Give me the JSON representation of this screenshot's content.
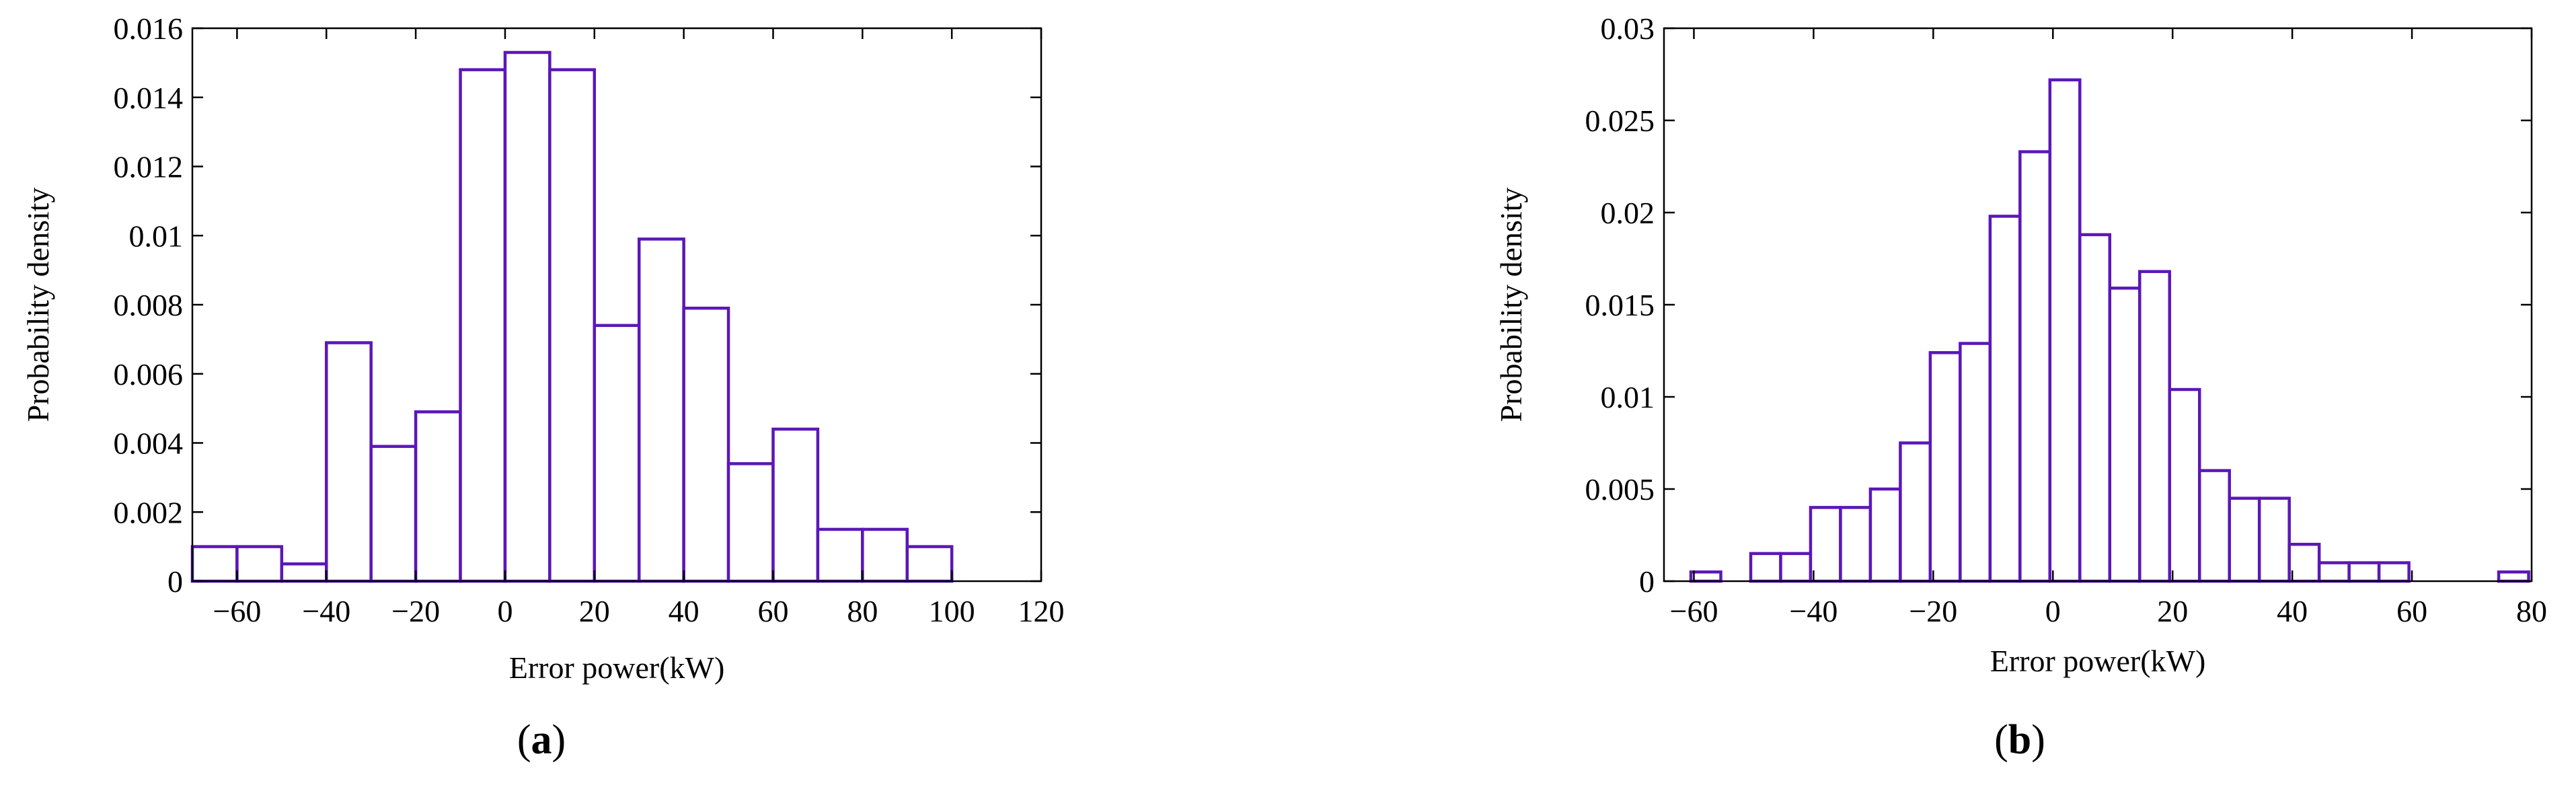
{
  "figure": {
    "panels": [
      {
        "label_open": "(",
        "label_letter": "a",
        "label_close": ")"
      },
      {
        "label_open": "(",
        "label_letter": "b",
        "label_close": ")"
      }
    ]
  },
  "chart_data": [
    {
      "type": "bar",
      "subtype": "histogram",
      "xlabel": "Error power(kW)",
      "ylabel": "Probability density",
      "xlim": [
        -70,
        120
      ],
      "ylim": [
        0,
        0.016
      ],
      "xticks": [
        -60,
        -40,
        -20,
        0,
        20,
        40,
        60,
        80,
        100,
        120
      ],
      "xtick_labels": [
        "−60",
        "−40",
        "−20",
        "0",
        "20",
        "40",
        "60",
        "80",
        "100",
        "120"
      ],
      "yticks": [
        0,
        0.002,
        0.004,
        0.006,
        0.008,
        0.01,
        0.012,
        0.014,
        0.016
      ],
      "ytick_labels": [
        "0",
        "0.002",
        "0.004",
        "0.006",
        "0.008",
        "0.01",
        "0.012",
        "0.014",
        "0.016"
      ],
      "bin_edges": [
        -70,
        -60,
        -50,
        -40,
        -30,
        -20,
        -10,
        0,
        10,
        20,
        30,
        40,
        50,
        60,
        70,
        80,
        90,
        100
      ],
      "values": [
        0.001,
        0.001,
        0.0005,
        0.0069,
        0.0039,
        0.0049,
        0.0148,
        0.0153,
        0.0148,
        0.0074,
        0.0099,
        0.0079,
        0.0034,
        0.0044,
        0.0015,
        0.0015,
        0.001
      ],
      "grid": false,
      "box": true,
      "bar_edge_color": "#5b17b8",
      "bar_fill_color": "#ffffff"
    },
    {
      "type": "bar",
      "subtype": "histogram",
      "xlabel": "Error power(kW)",
      "ylabel": "Probability density",
      "xlim": [
        -65,
        80
      ],
      "ylim": [
        0,
        0.03
      ],
      "xticks": [
        -60,
        -40,
        -20,
        0,
        20,
        40,
        60,
        80
      ],
      "xtick_labels": [
        "−60",
        "−40",
        "−20",
        "0",
        "20",
        "40",
        "60",
        "80"
      ],
      "yticks": [
        0,
        0.005,
        0.01,
        0.015,
        0.02,
        0.025,
        0.03
      ],
      "ytick_labels": [
        "0",
        "0.005",
        "0.01",
        "0.015",
        "0.02",
        "0.025",
        "0.03"
      ],
      "bin_edges": [
        -60.5,
        -55.5,
        -50.5,
        -45.5,
        -40.5,
        -35.5,
        -30.5,
        -25.5,
        -20.5,
        -15.5,
        -10.5,
        -5.5,
        -0.5,
        4.5,
        9.5,
        14.5,
        19.5,
        24.5,
        29.5,
        34.5,
        39.5,
        44.5,
        49.5,
        54.5,
        59.5,
        64.5,
        69.5,
        74.5,
        79.5
      ],
      "values": [
        0.0005,
        0,
        0.0015,
        0.0015,
        0.004,
        0.004,
        0.005,
        0.0075,
        0.0124,
        0.0129,
        0.0198,
        0.0233,
        0.0272,
        0.0188,
        0.0159,
        0.0168,
        0.0104,
        0.006,
        0.0045,
        0.0045,
        0.002,
        0.001,
        0.001,
        0.001,
        0,
        0,
        0,
        0.0005
      ],
      "grid": false,
      "box": true,
      "bar_edge_color": "#5b17b8",
      "bar_fill_color": "#ffffff"
    }
  ]
}
